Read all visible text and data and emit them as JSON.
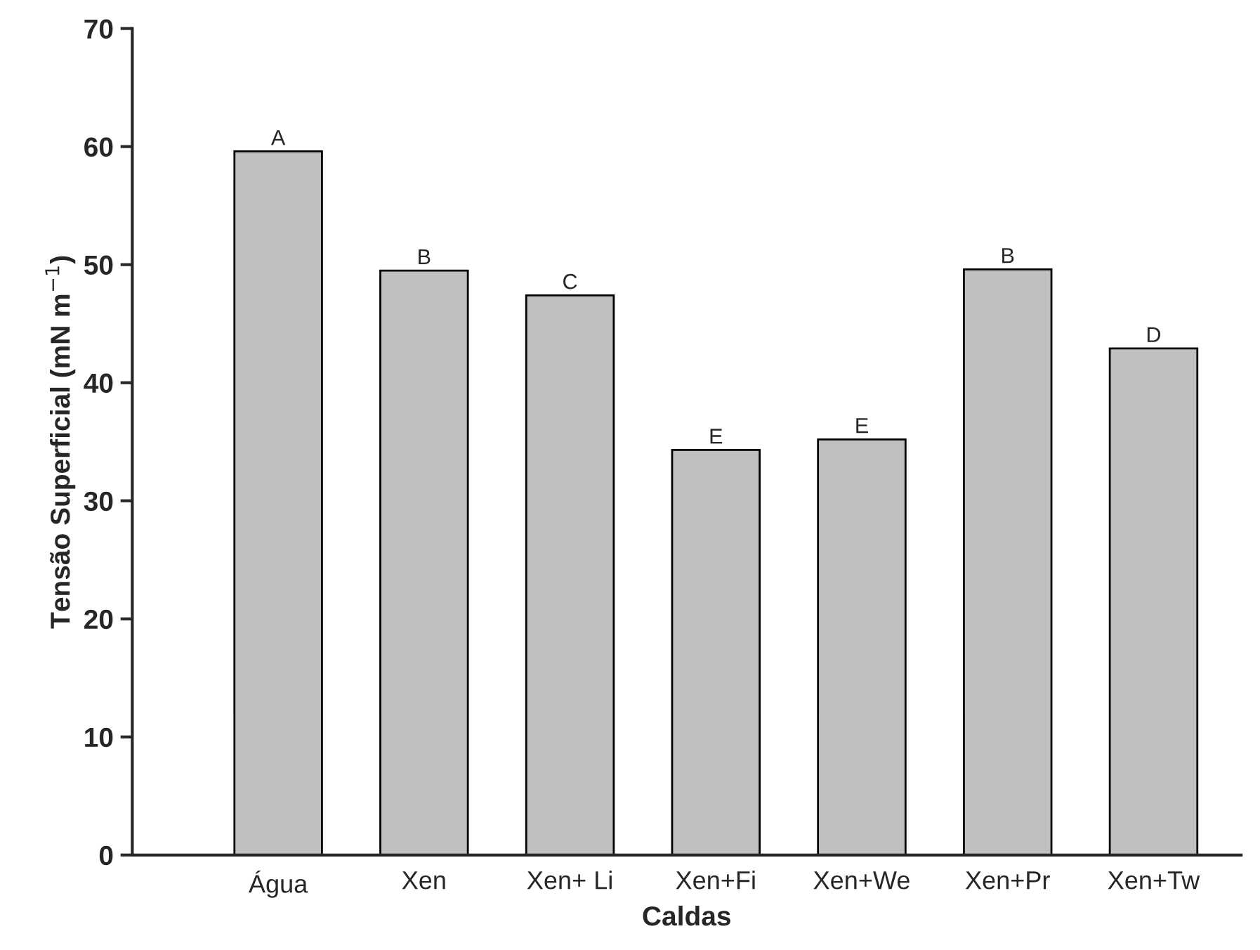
{
  "chart_data": {
    "type": "bar",
    "xlabel": "Caldas",
    "ylabel": "Tensão Superficial (mN m$^{−1}$)",
    "categories": [
      "Água",
      "Xen",
      "Xen+ Li",
      "Xen+Fi",
      "Xen+We",
      "Xen+Pr",
      "Xen+Tw"
    ],
    "values": [
      59.6,
      49.5,
      47.4,
      34.3,
      35.2,
      49.6,
      42.9
    ],
    "color": "#c0c0c0",
    "ylim": [
      0,
      70
    ],
    "yticks": [
      0,
      10,
      20,
      30,
      40,
      50,
      60,
      70
    ],
    "grid": false,
    "annotations": [
      {
        "text": "A",
        "x": "Água",
        "y": 59.6
      },
      {
        "text": "B",
        "x": "Xen",
        "y": 49.5
      },
      {
        "text": "C",
        "x": "Xen+ Li",
        "y": 47.4
      },
      {
        "text": "E",
        "x": "Xen+Fi",
        "y": 34.3
      },
      {
        "text": "E",
        "x": "Xen+We",
        "y": 35.2
      },
      {
        "text": "B",
        "x": "Xen+Pr",
        "y": 49.6
      },
      {
        "text": "D",
        "x": "Xen+Tw",
        "y": 42.9
      }
    ]
  }
}
